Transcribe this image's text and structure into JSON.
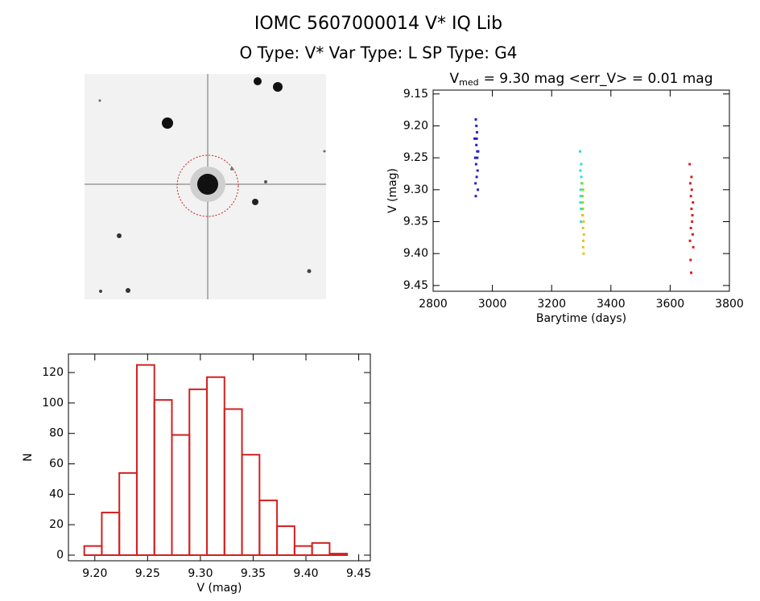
{
  "header": {
    "title": "IOMC 5607000014    V* IQ Lib",
    "subtitle": "O Type: V*   Var Type: L   SP Type: G4"
  },
  "chart_data": [
    {
      "type": "scatter",
      "title": [
        "V",
        "med",
        "= 9.30 mag  <err_V> = 0.01 mag"
      ],
      "x_label": "Barytime (days)",
      "y_label": "V (mag)",
      "xlim": [
        2800,
        3800
      ],
      "xticks": [
        2800,
        3000,
        3200,
        3400,
        3600,
        3800
      ],
      "ylim": [
        9.459,
        9.144
      ],
      "yticks": [
        9.15,
        {
          "value": 9.2,
          "label": "9.20"
        },
        9.25,
        {
          "value": 9.3,
          "label": "9.30"
        },
        9.35,
        {
          "value": 9.4,
          "label": "9.40"
        },
        9.45
      ],
      "series": [
        {
          "color": "#2222cc",
          "x": [
            2940,
            2942,
            2944,
            2945,
            2946,
            2947,
            2948,
            2949,
            2950,
            2951,
            2943,
            2946,
            2949,
            2952,
            2944,
            2947
          ],
          "values": [
            9.22,
            9.25,
            9.19,
            9.26,
            9.23,
            9.28,
            9.21,
            9.24,
            9.27,
            9.3,
            9.29,
            9.2,
            9.25,
            9.24,
            9.31,
            9.22
          ]
        },
        {
          "color": "#30ddd5",
          "x": [
            3296,
            3297,
            3298,
            3299,
            3300,
            3301,
            3297,
            3299,
            3300,
            3298
          ],
          "values": [
            9.24,
            9.27,
            9.3,
            9.33,
            9.26,
            9.29,
            9.32,
            9.35,
            9.28,
            9.31
          ]
        },
        {
          "color": "#80dd20",
          "x": [
            3303,
            3304,
            3305,
            3306,
            3304,
            3305
          ],
          "values": [
            9.29,
            9.31,
            9.33,
            9.3,
            9.34,
            9.32
          ]
        },
        {
          "color": "#e6c020",
          "x": [
            3305,
            3306,
            3307,
            3308,
            3309,
            3306,
            3308
          ],
          "values": [
            9.34,
            9.36,
            9.38,
            9.4,
            9.37,
            9.39,
            9.35
          ]
        },
        {
          "color": "#d42020",
          "x": [
            3666,
            3668,
            3670,
            3672,
            3674,
            3676,
            3678,
            3669,
            3671,
            3673,
            3675,
            3667,
            3677,
            3670,
            3672
          ],
          "values": [
            9.26,
            9.29,
            9.31,
            9.33,
            9.35,
            9.37,
            9.39,
            9.41,
            9.43,
            9.3,
            9.34,
            9.38,
            9.32,
            9.36,
            9.28
          ]
        }
      ]
    },
    {
      "type": "histogram",
      "x_label": "V (mag)",
      "y_label": "N",
      "color": "#d42020",
      "bins": [
        9.19,
        9.2066,
        9.2232,
        9.2398,
        9.2564,
        9.273,
        9.2896,
        9.3062,
        9.3228,
        9.3394,
        9.356,
        9.3726,
        9.3892,
        9.4058,
        9.4224,
        9.439
      ],
      "values": [
        6,
        28,
        54,
        125,
        102,
        79,
        109,
        117,
        96,
        66,
        36,
        19,
        6,
        8,
        1
      ],
      "xlim": [
        9.175,
        9.461
      ],
      "xticks": [
        {
          "value": 9.2,
          "label": "9.20"
        },
        9.25,
        {
          "value": 9.3,
          "label": "9.30"
        },
        9.35,
        {
          "value": 9.4,
          "label": "9.40"
        },
        9.45
      ],
      "ylim": [
        -3.7,
        132.2
      ],
      "yticks": [
        0,
        20,
        40,
        60,
        80,
        100,
        120
      ]
    }
  ]
}
